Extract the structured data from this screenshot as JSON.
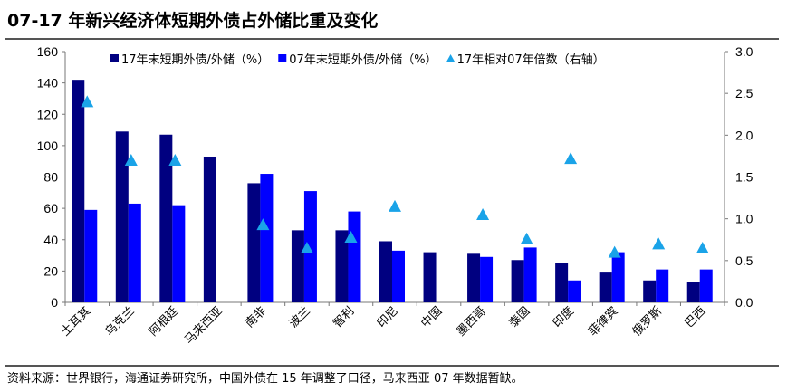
{
  "title": "07-17 年新兴经济体短期外债占外储比重及变化",
  "source": "资料来源：世界银行，海通证券研究所，中国外债在 15 年调整了口径，马来西亚 07 年数据暂缺。",
  "chart_data": {
    "type": "bar",
    "categories": [
      "土耳其",
      "乌克兰",
      "阿根廷",
      "马来西亚",
      "南非",
      "波兰",
      "智利",
      "印尼",
      "中国",
      "墨西哥",
      "泰国",
      "印度",
      "菲律宾",
      "俄罗斯",
      "巴西"
    ],
    "series": [
      {
        "name": "17年末短期外债/外储（%）",
        "type": "bar",
        "axis": "left",
        "color": "#000080",
        "values": [
          142,
          109,
          107,
          93,
          76,
          46,
          46,
          39,
          32,
          31,
          27,
          25,
          19,
          14,
          13
        ]
      },
      {
        "name": "07年末短期外债/外储（%）",
        "type": "bar",
        "axis": "left",
        "color": "#0000FF",
        "values": [
          59,
          63,
          62,
          null,
          82,
          71,
          58,
          33,
          null,
          29,
          35,
          14,
          32,
          21,
          21
        ]
      },
      {
        "name": "17年相对07年倍数（右轴）",
        "type": "scatter",
        "marker": "triangle",
        "axis": "right",
        "color": "#1AA3E8",
        "values": [
          2.4,
          1.7,
          1.7,
          null,
          0.93,
          0.65,
          0.78,
          1.15,
          null,
          1.05,
          0.76,
          1.72,
          0.6,
          0.7,
          0.65
        ]
      }
    ],
    "ylim": [
      0,
      160
    ],
    "yticks": [
      "0",
      "20",
      "40",
      "60",
      "80",
      "100",
      "120",
      "140",
      "160"
    ],
    "y2lim": [
      0,
      3
    ],
    "y2ticks": [
      "0.0",
      "0.5",
      "1.0",
      "1.5",
      "2.0",
      "2.5",
      "3.0"
    ],
    "legend": "top"
  }
}
